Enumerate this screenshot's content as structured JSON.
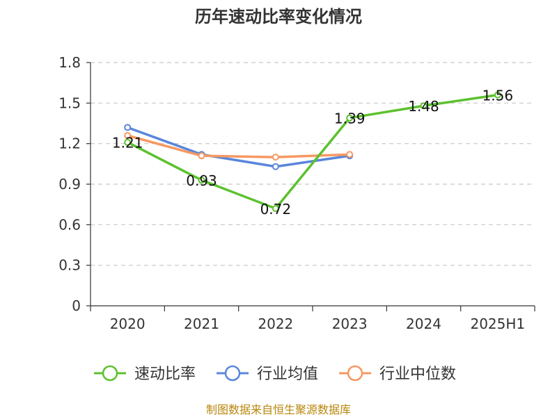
{
  "chart_data": {
    "type": "line",
    "title": "历年速动比率变化情况",
    "categories": [
      "2020",
      "2021",
      "2022",
      "2023",
      "2024",
      "2025H1"
    ],
    "ylim": [
      0,
      1.8
    ],
    "yticks": [
      "0",
      "0.3",
      "0.6",
      "0.9",
      "1.2",
      "1.5",
      "1.8"
    ],
    "grid": true,
    "legend_position": "bottom",
    "series": [
      {
        "name": "速动比率",
        "color": "#5cc12e",
        "values": [
          1.21,
          0.93,
          0.72,
          1.39,
          1.48,
          1.56
        ],
        "labels": [
          "1.21",
          "0.93",
          "0.72",
          "1.39",
          "1.48",
          "1.56"
        ]
      },
      {
        "name": "行业均值",
        "color": "#5a86db",
        "values": [
          1.32,
          1.12,
          1.03,
          1.11,
          null,
          null
        ]
      },
      {
        "name": "行业中位数",
        "color": "#f79862",
        "values": [
          1.26,
          1.11,
          1.1,
          1.12,
          null,
          null
        ]
      }
    ]
  },
  "source": "制图数据来自恒生聚源数据库"
}
